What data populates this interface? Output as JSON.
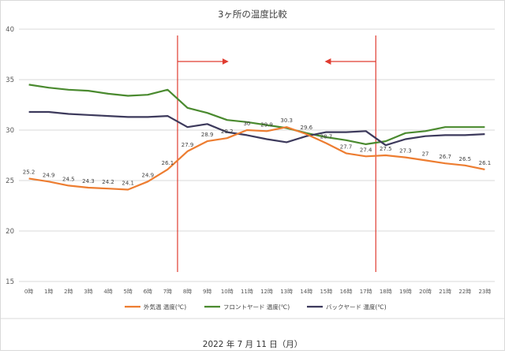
{
  "chart_data": {
    "type": "line",
    "title": "3ヶ所の温度比較",
    "caption": "2022 年 7 月 11 日（月）",
    "xlabel": "",
    "ylabel": "",
    "ylim": [
      15,
      40
    ],
    "yticks": [
      15,
      20,
      25,
      30,
      35,
      40
    ],
    "grid": true,
    "legend": "bottom",
    "categories": [
      "0時",
      "1時",
      "2時",
      "3時",
      "4時",
      "5時",
      "6時",
      "7時",
      "8時",
      "9時",
      "10時",
      "11時",
      "12時",
      "13時",
      "14時",
      "15時",
      "16時",
      "17時",
      "18時",
      "19時",
      "20時",
      "21時",
      "22時",
      "23時"
    ],
    "series": [
      {
        "name": "外気温 温度(℃)",
        "color": "#ed7d31",
        "values": [
          25.2,
          24.9,
          24.5,
          24.3,
          24.2,
          24.1,
          24.9,
          26.1,
          27.9,
          28.9,
          29.2,
          30,
          29.9,
          30.3,
          29.6,
          28.7,
          27.7,
          27.4,
          27.5,
          27.3,
          27,
          26.7,
          26.5,
          26.1
        ],
        "labels": [
          "25.2",
          "24.9",
          "24.5",
          "24.3",
          "24.2",
          "24.1",
          "24.9",
          "26.1",
          "27.9",
          "28.9",
          "29.2",
          "30",
          "29.9",
          "30.3",
          "29.6",
          "28.7",
          "27.7",
          "27.4",
          "27.5",
          "27.3",
          "27",
          "26.7",
          "26.5",
          "26.1"
        ]
      },
      {
        "name": "フロントヤード 温度(℃)",
        "color": "#4a8a2f",
        "values": [
          34.5,
          34.2,
          34.0,
          33.9,
          33.6,
          33.4,
          33.5,
          34.0,
          32.2,
          31.7,
          31.0,
          30.8,
          30.5,
          30.2,
          29.7,
          29.3,
          29.0,
          28.6,
          28.9,
          29.7,
          29.9,
          30.3,
          30.3,
          30.3
        ]
      },
      {
        "name": "バックヤード 温度(℃)",
        "color": "#3d3a5c",
        "values": [
          31.8,
          31.8,
          31.6,
          31.5,
          31.4,
          31.3,
          31.3,
          31.4,
          30.3,
          30.6,
          29.8,
          29.5,
          29.1,
          28.8,
          29.4,
          29.8,
          29.8,
          29.9,
          28.5,
          29.1,
          29.4,
          29.5,
          29.5,
          29.6
        ]
      }
    ],
    "annotations": {
      "marker_color": "#e03c31",
      "vertical_lines_at": [
        8,
        18
      ],
      "arrows": [
        {
          "from": 8,
          "to": 10.5,
          "direction": "right"
        },
        {
          "from": 18,
          "to": 15.5,
          "direction": "left"
        }
      ]
    }
  }
}
